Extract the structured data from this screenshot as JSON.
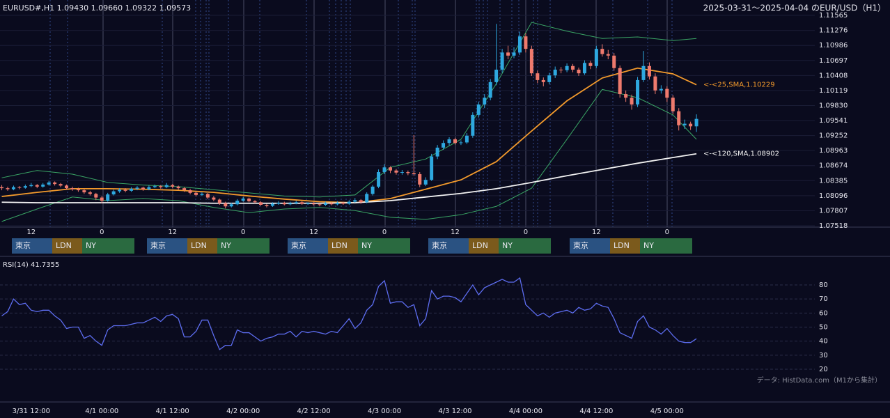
{
  "chart_data": [
    {
      "type": "candlestick",
      "symbol_info": "EURUSD#,H1 1.09430 1.09660 1.09322 1.09573",
      "title": "2025-03-31～2025-04-04 のEUR/USD（H1）",
      "up_color": "#2ea8df",
      "down_color": "#ef7a6d",
      "xlim": [
        -0.3,
        118.7
      ],
      "xticks": [
        {
          "value": 5,
          "label": "12"
        },
        {
          "value": 17,
          "label": "0"
        },
        {
          "value": 29,
          "label": "12"
        },
        {
          "value": 41,
          "label": "0"
        },
        {
          "value": 53,
          "label": "12"
        },
        {
          "value": 65,
          "label": "0"
        },
        {
          "value": 77,
          "label": "12"
        },
        {
          "value": 89,
          "label": "0"
        },
        {
          "value": 101,
          "label": "12"
        },
        {
          "value": 113,
          "label": "0"
        }
      ],
      "ylim": [
        1.07518,
        1.11565
      ],
      "yticks": [
        1.11565,
        1.11276,
        1.10986,
        1.10697,
        1.10408,
        1.10119,
        {
          "value": 1.0983,
          "label": "1.09830"
        },
        1.09541,
        1.09252,
        1.08963,
        1.08674,
        1.08385,
        1.08096,
        1.07807,
        1.07518
      ],
      "grid": true,
      "sessions": [
        {
          "name": "東京",
          "color": "#2a5282"
        },
        {
          "name": "LDN",
          "color": "#7b5a1c"
        },
        {
          "name": "NY",
          "color": "#2a6a40"
        }
      ],
      "ohlc": [
        [
          1.0826,
          1.083,
          1.082,
          1.0824
        ],
        [
          1.0824,
          1.0827,
          1.0819,
          1.0822
        ],
        [
          1.0822,
          1.0829,
          1.082,
          1.0826
        ],
        [
          1.0826,
          1.0828,
          1.0822,
          1.0825
        ],
        [
          1.0825,
          1.0831,
          1.0823,
          1.0828
        ],
        [
          1.0828,
          1.0834,
          1.0826,
          1.083
        ],
        [
          1.083,
          1.0832,
          1.0824,
          1.0827
        ],
        [
          1.0827,
          1.0834,
          1.0825,
          1.0831
        ],
        [
          1.0831,
          1.0838,
          1.0829,
          1.0835
        ],
        [
          1.0835,
          1.0837,
          1.0829,
          1.0832
        ],
        [
          1.0832,
          1.0834,
          1.0826,
          1.0829
        ],
        [
          1.0829,
          1.0831,
          1.0821,
          1.0824
        ],
        [
          1.0824,
          1.0827,
          1.0819,
          1.0822
        ],
        [
          1.0822,
          1.0825,
          1.0817,
          1.082
        ],
        [
          1.082,
          1.0823,
          1.0813,
          1.0816
        ],
        [
          1.0816,
          1.0819,
          1.081,
          1.0813
        ],
        [
          1.0813,
          1.0815,
          1.0801,
          1.0806
        ],
        [
          1.0806,
          1.0809,
          1.0795,
          1.08
        ],
        [
          1.08,
          1.0815,
          1.0798,
          1.0812
        ],
        [
          1.0812,
          1.0821,
          1.081,
          1.0818
        ],
        [
          1.0818,
          1.0824,
          1.0815,
          1.0821
        ],
        [
          1.0821,
          1.0824,
          1.0816,
          1.0819
        ],
        [
          1.0819,
          1.0826,
          1.0817,
          1.0823
        ],
        [
          1.0823,
          1.0828,
          1.082,
          1.0825
        ],
        [
          1.0825,
          1.0827,
          1.0819,
          1.0822
        ],
        [
          1.0822,
          1.0829,
          1.082,
          1.0826
        ],
        [
          1.0826,
          1.0831,
          1.0824,
          1.0828
        ],
        [
          1.0828,
          1.083,
          1.0823,
          1.0826
        ],
        [
          1.0826,
          1.0834,
          1.0824,
          1.083
        ],
        [
          1.083,
          1.0832,
          1.0824,
          1.0827
        ],
        [
          1.0827,
          1.0829,
          1.0821,
          1.0824
        ],
        [
          1.0824,
          1.0826,
          1.0817,
          1.082
        ],
        [
          1.082,
          1.0823,
          1.0812,
          1.0815
        ],
        [
          1.0815,
          1.0818,
          1.0808,
          1.0811
        ],
        [
          1.0811,
          1.0816,
          1.0809,
          1.0813
        ],
        [
          1.0813,
          1.0815,
          1.0803,
          1.0806
        ],
        [
          1.0806,
          1.0809,
          1.0799,
          1.0802
        ],
        [
          1.0802,
          1.0804,
          1.0792,
          1.0795
        ],
        [
          1.0795,
          1.0798,
          1.0785,
          1.0789
        ],
        [
          1.0789,
          1.0796,
          1.0787,
          1.0793
        ],
        [
          1.0793,
          1.0803,
          1.0791,
          1.08
        ],
        [
          1.08,
          1.0807,
          1.0798,
          1.0804
        ],
        [
          1.0804,
          1.0806,
          1.0797,
          1.0799
        ],
        [
          1.0799,
          1.0801,
          1.0795,
          1.0797
        ],
        [
          1.0797,
          1.0799,
          1.079,
          1.0792
        ],
        [
          1.0792,
          1.0794,
          1.0787,
          1.079
        ],
        [
          1.079,
          1.0797,
          1.0788,
          1.0794
        ],
        [
          1.0794,
          1.0799,
          1.0792,
          1.0796
        ],
        [
          1.0796,
          1.0798,
          1.0791,
          1.0793
        ],
        [
          1.0793,
          1.0798,
          1.0791,
          1.0795
        ],
        [
          1.0795,
          1.08,
          1.0793,
          1.0797
        ],
        [
          1.0797,
          1.0799,
          1.0792,
          1.0794
        ],
        [
          1.0794,
          1.0797,
          1.0792,
          1.0795
        ],
        [
          1.0795,
          1.0797,
          1.0791,
          1.0793
        ],
        [
          1.0793,
          1.0795,
          1.0789,
          1.0792
        ],
        [
          1.0792,
          1.0798,
          1.079,
          1.0795
        ],
        [
          1.0795,
          1.0797,
          1.0791,
          1.0793
        ],
        [
          1.0793,
          1.0799,
          1.0791,
          1.0796
        ],
        [
          1.0796,
          1.0798,
          1.0792,
          1.0794
        ],
        [
          1.0794,
          1.0801,
          1.0792,
          1.0798
        ],
        [
          1.0798,
          1.0805,
          1.0796,
          1.0801
        ],
        [
          1.0801,
          1.0803,
          1.0794,
          1.0797
        ],
        [
          1.0797,
          1.0816,
          1.0795,
          1.0813
        ],
        [
          1.0813,
          1.083,
          1.081,
          1.0827
        ],
        [
          1.0827,
          1.086,
          1.0824,
          1.0855
        ],
        [
          1.0855,
          1.087,
          1.0851,
          1.0864
        ],
        [
          1.0864,
          1.0866,
          1.0853,
          1.0858
        ],
        [
          1.0858,
          1.0861,
          1.085,
          1.0854
        ],
        [
          1.0854,
          1.0859,
          1.085,
          1.0855
        ],
        [
          1.0855,
          1.0858,
          1.0849,
          1.0853
        ],
        [
          1.0853,
          1.0926,
          1.0848,
          1.0851
        ],
        [
          1.0851,
          1.0855,
          1.0826,
          1.0831
        ],
        [
          1.0831,
          1.0845,
          1.0828,
          1.084
        ],
        [
          1.084,
          1.089,
          1.0838,
          1.0885
        ],
        [
          1.0885,
          1.0907,
          1.088,
          1.0902
        ],
        [
          1.0902,
          1.0916,
          1.0898,
          1.0911
        ],
        [
          1.0911,
          1.0922,
          1.0906,
          1.0918
        ],
        [
          1.0918,
          1.0921,
          1.0908,
          1.0911
        ],
        [
          1.0911,
          1.0916,
          1.0907,
          1.0912
        ],
        [
          1.0912,
          1.093,
          1.0909,
          1.0925
        ],
        [
          1.0925,
          1.097,
          1.0921,
          1.0965
        ],
        [
          1.0965,
          1.099,
          1.096,
          1.0985
        ],
        [
          1.0985,
          1.1005,
          1.0978,
          1.0998
        ],
        [
          1.0998,
          1.1034,
          1.0993,
          1.1028
        ],
        [
          1.1028,
          1.114,
          1.1022,
          1.1052
        ],
        [
          1.1052,
          1.1092,
          1.1046,
          1.1085
        ],
        [
          1.1085,
          1.1098,
          1.1072,
          1.1079
        ],
        [
          1.1079,
          1.1095,
          1.1074,
          1.1085
        ],
        [
          1.1085,
          1.1125,
          1.108,
          1.1116
        ],
        [
          1.1116,
          1.1122,
          1.1085,
          1.1092
        ],
        [
          1.1092,
          1.1098,
          1.104,
          1.1045
        ],
        [
          1.1045,
          1.105,
          1.1026,
          1.1032
        ],
        [
          1.1032,
          1.1037,
          1.102,
          1.1028
        ],
        [
          1.1028,
          1.1046,
          1.1024,
          1.1041
        ],
        [
          1.1041,
          1.1058,
          1.1036,
          1.1052
        ],
        [
          1.1052,
          1.1057,
          1.1045,
          1.1051
        ],
        [
          1.1051,
          1.1064,
          1.1047,
          1.1059
        ],
        [
          1.1059,
          1.1063,
          1.1047,
          1.1052
        ],
        [
          1.1052,
          1.1056,
          1.104,
          1.1045
        ],
        [
          1.1045,
          1.107,
          1.1042,
          1.1065
        ],
        [
          1.1065,
          1.1069,
          1.1053,
          1.1059
        ],
        [
          1.1059,
          1.1098,
          1.1055,
          1.1092
        ],
        [
          1.1092,
          1.1101,
          1.1077,
          1.1082
        ],
        [
          1.1082,
          1.109,
          1.1072,
          1.1079
        ],
        [
          1.1079,
          1.1084,
          1.105,
          1.1055
        ],
        [
          1.1055,
          1.106,
          1.0998,
          1.1005
        ],
        [
          1.1005,
          1.1012,
          1.099,
          1.0998
        ],
        [
          1.0998,
          1.1004,
          1.0975,
          1.0985
        ],
        [
          1.0985,
          1.1038,
          1.098,
          1.1032
        ],
        [
          1.1032,
          1.1088,
          1.1028,
          1.1059
        ],
        [
          1.1059,
          1.1066,
          1.1033,
          1.1039
        ],
        [
          1.1039,
          1.1045,
          1.1005,
          1.1012
        ],
        [
          1.1012,
          1.1022,
          1.1006,
          1.1015
        ],
        [
          1.1015,
          1.102,
          1.099,
          1.0998
        ],
        [
          1.0998,
          1.1003,
          1.0966,
          1.0972
        ],
        [
          1.0972,
          1.0978,
          1.0935,
          1.0945
        ],
        [
          1.0945,
          1.0956,
          1.0938,
          1.0948
        ],
        [
          1.0948,
          1.0952,
          1.0936,
          1.0943
        ],
        [
          1.0943,
          1.0966,
          1.09322,
          1.09573
        ]
      ],
      "overlay_x": [
        0,
        6,
        12,
        18,
        24,
        30,
        36,
        42,
        48,
        54,
        60,
        66,
        72,
        78,
        84,
        90,
        96,
        102,
        108,
        114,
        118
      ],
      "overlays": [
        {
          "color": "#3aa565",
          "values": [
            1.0844,
            1.0858,
            1.0851,
            1.0835,
            1.083,
            1.0827,
            1.0821,
            1.0815,
            1.0809,
            1.0807,
            1.0811,
            1.0864,
            1.088,
            1.0918,
            1.1025,
            1.1143,
            1.1126,
            1.1112,
            1.1115,
            1.1108,
            1.1112
          ]
        },
        {
          "color": "#3aa565",
          "values": [
            1.076,
            1.0784,
            1.0807,
            1.08,
            1.0804,
            1.08,
            1.0787,
            1.0777,
            1.0784,
            1.0787,
            1.0781,
            1.0768,
            1.0764,
            1.0773,
            1.0789,
            1.0824,
            1.0918,
            1.1014,
            1.0998,
            1.0965,
            1.0918
          ]
        },
        {
          "color": "#f39a2c",
          "label": "<-<25,SMA,1.10229",
          "values": [
            1.0808,
            1.0816,
            1.0823,
            1.0823,
            1.0822,
            1.082,
            1.0816,
            1.0809,
            1.0803,
            1.0798,
            1.0796,
            1.0804,
            1.0822,
            1.084,
            1.0875,
            1.0934,
            1.0992,
            1.1036,
            1.1055,
            1.1044,
            1.10229
          ]
        },
        {
          "color": "#f2f2f2",
          "label": "<-<120,SMA,1.08902",
          "values": [
            1.0797,
            1.0796,
            1.0796,
            1.0796,
            1.0796,
            1.0796,
            1.0795,
            1.0795,
            1.0795,
            1.0795,
            1.0796,
            1.08,
            1.0807,
            1.0814,
            1.0823,
            1.0835,
            1.0848,
            1.086,
            1.0872,
            1.0883,
            1.08902
          ]
        }
      ]
    },
    {
      "type": "line",
      "title": "RSI(14) 41.7355",
      "source": "データ: HistData.com（M1から集計）",
      "color": "#5d6df0",
      "xlim": [
        -0.3,
        118.7
      ],
      "xticks": [
        {
          "value": 5,
          "label": "3/31 12:00"
        },
        {
          "value": 17,
          "label": "4/1 00:00"
        },
        {
          "value": 29,
          "label": "4/1 12:00"
        },
        {
          "value": 41,
          "label": "4/2 00:00"
        },
        {
          "value": 53,
          "label": "4/2 12:00"
        },
        {
          "value": 65,
          "label": "4/3 00:00"
        },
        {
          "value": 77,
          "label": "4/3 12:00"
        },
        {
          "value": 89,
          "label": "4/4 00:00"
        },
        {
          "value": 101,
          "label": "4/4 12:00"
        },
        {
          "value": 113,
          "label": "4/5 00:00"
        }
      ],
      "ylim": [
        0,
        100
      ],
      "yticks": [
        80,
        70,
        60,
        50,
        40,
        30,
        20
      ],
      "grid": true,
      "values": [
        58,
        61,
        70,
        66,
        67,
        62,
        61,
        62,
        62,
        58,
        55,
        49,
        50,
        50,
        42,
        44,
        40,
        37,
        48,
        51,
        51,
        51,
        52,
        53,
        53,
        55,
        57,
        54,
        58,
        59,
        56,
        43,
        43,
        47,
        55,
        55,
        44,
        34,
        37,
        37,
        48,
        46,
        46,
        43,
        40,
        42,
        43,
        45,
        45,
        47,
        43,
        47,
        46,
        47,
        46,
        45,
        47,
        46,
        51,
        56,
        49,
        53,
        62,
        66,
        79,
        83,
        67,
        68,
        68,
        64,
        66,
        51,
        56,
        76,
        70,
        72,
        72,
        71,
        68,
        74,
        80,
        73,
        78,
        80,
        82,
        84,
        82,
        82,
        85,
        66,
        62,
        58,
        60,
        57,
        60,
        61,
        62,
        60,
        64,
        62,
        63,
        67,
        65,
        64,
        56,
        46,
        44,
        42,
        54,
        58,
        50,
        48,
        45,
        49,
        44,
        40,
        39,
        39,
        41.7355
      ]
    }
  ]
}
